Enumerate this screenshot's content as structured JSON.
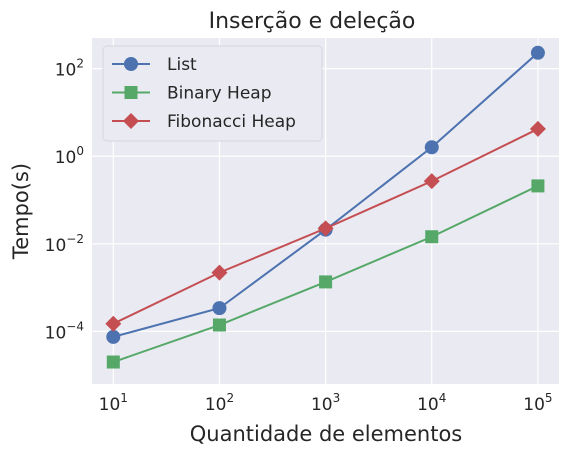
{
  "chart_data": {
    "type": "line",
    "title": "Inserção e deleção",
    "xlabel": "Quantidade de elementos",
    "ylabel": "Tempo(s)",
    "x_scale": "log",
    "y_scale": "log",
    "x": [
      10,
      100,
      1000,
      10000,
      100000
    ],
    "x_tick_labels": [
      {
        "base": "10",
        "exp": "1"
      },
      {
        "base": "10",
        "exp": "2"
      },
      {
        "base": "10",
        "exp": "3"
      },
      {
        "base": "10",
        "exp": "4"
      },
      {
        "base": "10",
        "exp": "5"
      }
    ],
    "y_tick_labels": [
      {
        "value": 0.0001,
        "base": "10",
        "exp": "−4"
      },
      {
        "value": 0.01,
        "base": "10",
        "exp": "−2"
      },
      {
        "value": 1,
        "base": "10",
        "exp": "0"
      },
      {
        "value": 100,
        "base": "10",
        "exp": "2"
      }
    ],
    "xlim": [
      6.3,
      158000
    ],
    "ylim": [
      6.3e-06,
      500
    ],
    "grid": true,
    "legend_position": "top-left",
    "series": [
      {
        "name": "List",
        "color": "#4c72b0",
        "marker": "circle",
        "values": [
          7.5e-05,
          0.00034,
          0.021,
          1.6,
          230
        ]
      },
      {
        "name": "Binary Heap",
        "color": "#55a868",
        "marker": "square",
        "values": [
          2e-05,
          0.00014,
          0.00135,
          0.0145,
          0.21
        ]
      },
      {
        "name": "Fibonacci Heap",
        "color": "#c44e52",
        "marker": "diamond",
        "values": [
          0.00015,
          0.0022,
          0.0225,
          0.27,
          4.2
        ]
      }
    ]
  }
}
